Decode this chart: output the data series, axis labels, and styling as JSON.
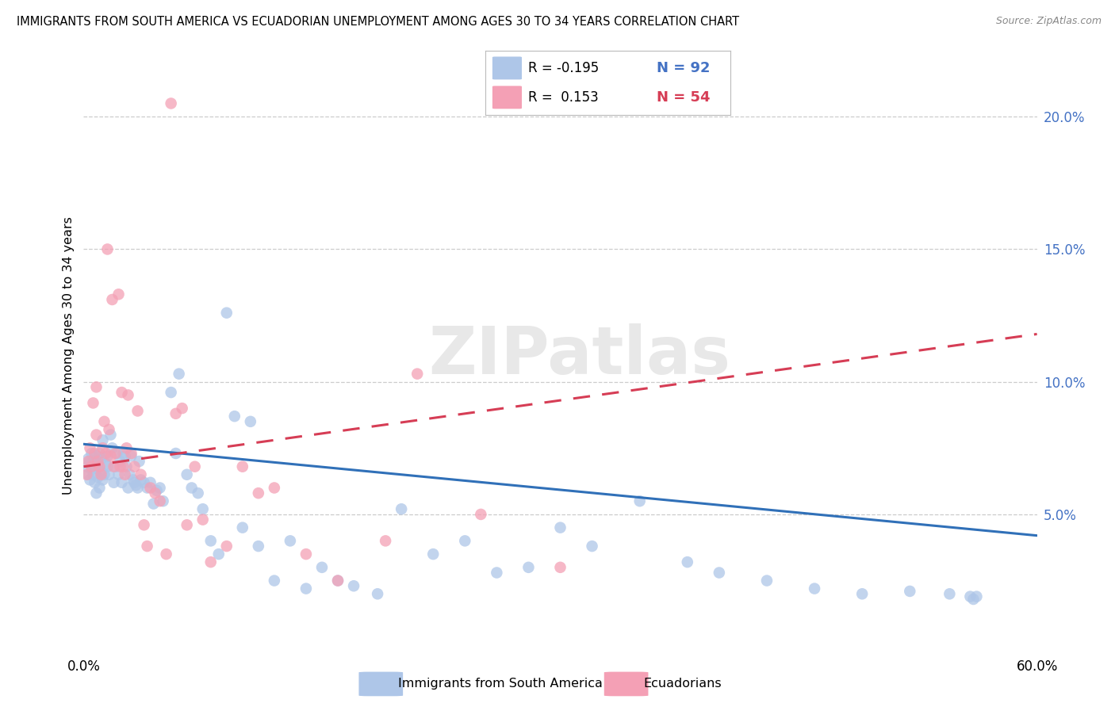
{
  "title": "IMMIGRANTS FROM SOUTH AMERICA VS ECUADORIAN UNEMPLOYMENT AMONG AGES 30 TO 34 YEARS CORRELATION CHART",
  "source": "Source: ZipAtlas.com",
  "ylabel": "Unemployment Among Ages 30 to 34 years",
  "xlim": [
    0.0,
    0.6
  ],
  "ylim": [
    0.0,
    0.22
  ],
  "yticks": [
    0.05,
    0.1,
    0.15,
    0.2
  ],
  "ytick_labels": [
    "5.0%",
    "10.0%",
    "15.0%",
    "20.0%"
  ],
  "blue_color": "#aec6e8",
  "pink_color": "#f4a0b5",
  "blue_line_color": "#3070b8",
  "pink_line_color": "#d63d55",
  "watermark": "ZIPatlas",
  "legend_r1": "-0.195",
  "legend_n1": "92",
  "legend_r2": "0.153",
  "legend_n2": "54",
  "blue_trend_start": 0.0765,
  "blue_trend_end": 0.042,
  "pink_trend_start": 0.068,
  "pink_trend_end": 0.118,
  "blue_x": [
    0.002,
    0.003,
    0.003,
    0.004,
    0.004,
    0.005,
    0.005,
    0.006,
    0.006,
    0.007,
    0.007,
    0.008,
    0.008,
    0.009,
    0.009,
    0.01,
    0.01,
    0.011,
    0.011,
    0.012,
    0.012,
    0.013,
    0.014,
    0.015,
    0.015,
    0.016,
    0.017,
    0.018,
    0.019,
    0.02,
    0.021,
    0.022,
    0.023,
    0.024,
    0.025,
    0.026,
    0.027,
    0.028,
    0.029,
    0.03,
    0.031,
    0.032,
    0.033,
    0.034,
    0.035,
    0.036,
    0.038,
    0.04,
    0.042,
    0.044,
    0.046,
    0.048,
    0.05,
    0.055,
    0.058,
    0.06,
    0.065,
    0.068,
    0.072,
    0.075,
    0.08,
    0.085,
    0.09,
    0.095,
    0.1,
    0.105,
    0.11,
    0.12,
    0.13,
    0.14,
    0.15,
    0.16,
    0.17,
    0.185,
    0.2,
    0.22,
    0.24,
    0.26,
    0.28,
    0.3,
    0.32,
    0.35,
    0.38,
    0.4,
    0.43,
    0.46,
    0.49,
    0.52,
    0.545,
    0.558,
    0.56,
    0.562
  ],
  "blue_y": [
    0.068,
    0.065,
    0.071,
    0.063,
    0.07,
    0.067,
    0.073,
    0.065,
    0.07,
    0.062,
    0.068,
    0.058,
    0.072,
    0.064,
    0.069,
    0.06,
    0.073,
    0.066,
    0.071,
    0.063,
    0.078,
    0.065,
    0.069,
    0.072,
    0.068,
    0.065,
    0.08,
    0.075,
    0.062,
    0.068,
    0.073,
    0.065,
    0.07,
    0.062,
    0.073,
    0.072,
    0.068,
    0.06,
    0.065,
    0.072,
    0.063,
    0.062,
    0.061,
    0.06,
    0.07,
    0.063,
    0.062,
    0.06,
    0.062,
    0.054,
    0.059,
    0.06,
    0.055,
    0.096,
    0.073,
    0.103,
    0.065,
    0.06,
    0.058,
    0.052,
    0.04,
    0.035,
    0.126,
    0.087,
    0.045,
    0.085,
    0.038,
    0.025,
    0.04,
    0.022,
    0.03,
    0.025,
    0.023,
    0.02,
    0.052,
    0.035,
    0.04,
    0.028,
    0.03,
    0.045,
    0.038,
    0.055,
    0.032,
    0.028,
    0.025,
    0.022,
    0.02,
    0.021,
    0.02,
    0.019,
    0.018,
    0.019
  ],
  "pink_x": [
    0.002,
    0.003,
    0.004,
    0.005,
    0.006,
    0.007,
    0.008,
    0.008,
    0.009,
    0.01,
    0.011,
    0.012,
    0.013,
    0.014,
    0.015,
    0.016,
    0.017,
    0.018,
    0.019,
    0.02,
    0.022,
    0.023,
    0.024,
    0.025,
    0.026,
    0.027,
    0.028,
    0.03,
    0.032,
    0.034,
    0.036,
    0.038,
    0.04,
    0.042,
    0.045,
    0.048,
    0.052,
    0.055,
    0.058,
    0.062,
    0.065,
    0.07,
    0.075,
    0.08,
    0.09,
    0.1,
    0.11,
    0.12,
    0.14,
    0.16,
    0.19,
    0.21,
    0.25,
    0.3
  ],
  "pink_y": [
    0.065,
    0.07,
    0.075,
    0.068,
    0.092,
    0.073,
    0.08,
    0.098,
    0.07,
    0.068,
    0.065,
    0.075,
    0.085,
    0.073,
    0.15,
    0.082,
    0.072,
    0.131,
    0.068,
    0.073,
    0.133,
    0.068,
    0.096,
    0.068,
    0.065,
    0.075,
    0.095,
    0.073,
    0.068,
    0.089,
    0.065,
    0.046,
    0.038,
    0.06,
    0.058,
    0.055,
    0.035,
    0.205,
    0.088,
    0.09,
    0.046,
    0.068,
    0.048,
    0.032,
    0.038,
    0.068,
    0.058,
    0.06,
    0.035,
    0.025,
    0.04,
    0.103,
    0.05,
    0.03
  ]
}
